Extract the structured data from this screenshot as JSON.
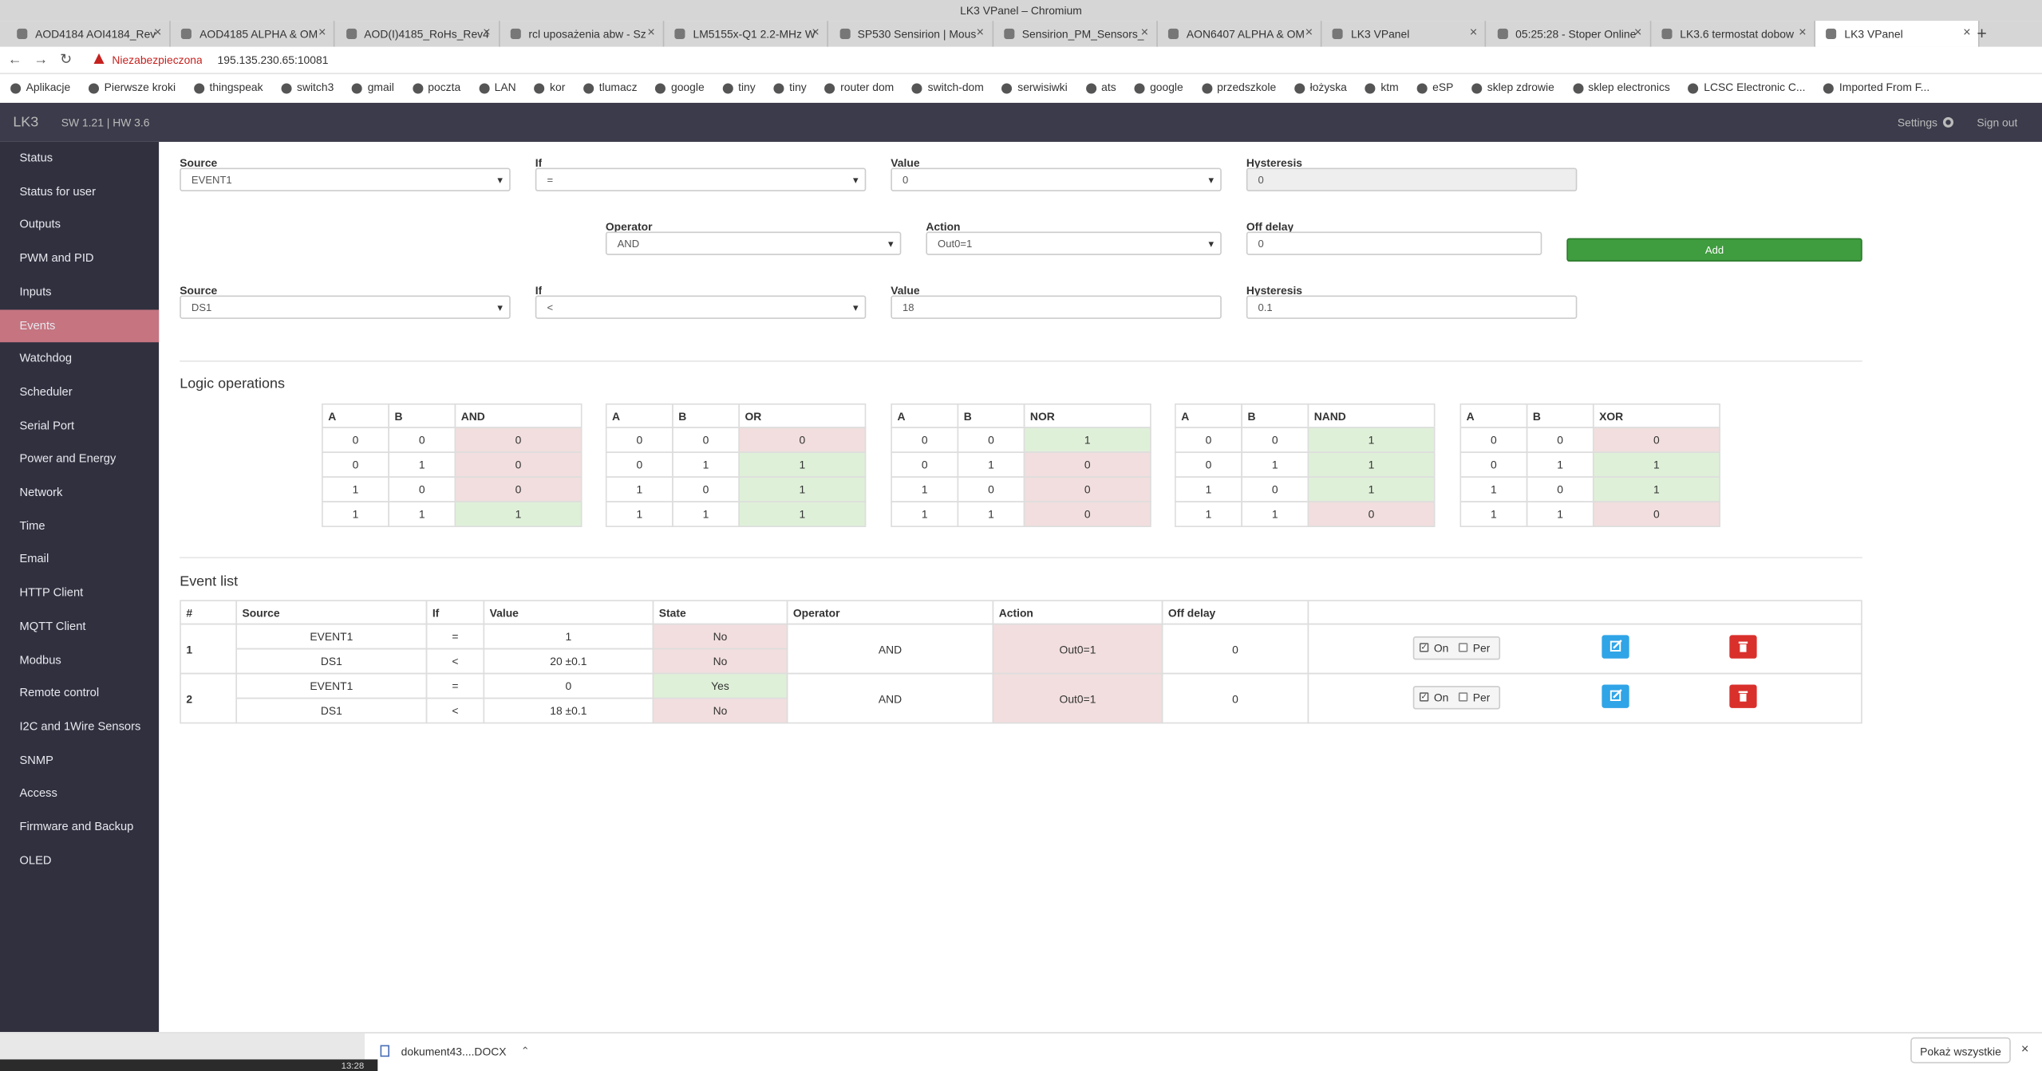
{
  "browser": {
    "window_title": "LK3 VPanel – Chromium",
    "tabs": [
      "AOD4184 AOI4184_Rev",
      "AOD4185 ALPHA & OM",
      "AOD(I)4185_RoHs_Rev4",
      "rcl uposażenia abw - Sz",
      "LM5155x-Q1 2.2-MHz W",
      "SP530 Sensirion | Mous",
      "Sensirion_PM_Sensors_",
      "AON6407 ALPHA & OM",
      "LK3 VPanel",
      "05:25:28 - Stoper Online",
      "LK3.6 termostat dobow",
      "LK3 VPanel"
    ],
    "security": "Niezabezpieczona",
    "url": "195.135.230.65:10081",
    "bookmarks": [
      "Aplikacje",
      "Pierwsze kroki",
      "thingspeak",
      "switch3",
      "gmail",
      "poczta",
      "LAN",
      "kor",
      "tlumacz",
      "google",
      "tiny",
      "tiny",
      "router dom",
      "switch-dom",
      "serwisiwki",
      "ats",
      "google",
      "przedszkole",
      "łożyska",
      "ktm",
      "eSP",
      "sklep zdrowie",
      "sklep electronics",
      "LCSC Electronic C...",
      "Imported From F..."
    ]
  },
  "app": {
    "brand": "LK3",
    "version": "SW 1.21 | HW 3.6",
    "settings": "Settings",
    "signout": "Sign out",
    "sidebar": [
      "Status",
      "Status for user",
      "Outputs",
      "PWM and PID",
      "Inputs",
      "Events",
      "Watchdog",
      "Scheduler",
      "Serial Port",
      "Power and Energy",
      "Network",
      "Time",
      "Email",
      "HTTP Client",
      "MQTT Client",
      "Modbus",
      "Remote control",
      "I2C and 1Wire Sensors",
      "SNMP",
      "Access",
      "Firmware and Backup",
      "OLED"
    ]
  },
  "form": {
    "row1": [
      {
        "label": "Source",
        "value": "EVENT1"
      },
      {
        "label": "If",
        "value": "="
      },
      {
        "label": "Value",
        "value": "0"
      },
      {
        "label": "Hysteresis",
        "value": "0"
      }
    ],
    "row2": [
      {
        "label": "Operator",
        "value": "AND"
      },
      {
        "label": "Action",
        "value": "Out0=1"
      },
      {
        "label": "Off delay",
        "value": "0"
      }
    ],
    "add": "Add",
    "row3": [
      {
        "label": "Source",
        "value": "DS1"
      },
      {
        "label": "If",
        "value": "<"
      },
      {
        "label": "Value",
        "value": "18"
      },
      {
        "label": "Hysteresis",
        "value": "0.1"
      }
    ]
  },
  "logic": {
    "title": "Logic operations",
    "tables": [
      {
        "headers": [
          "A",
          "B",
          "AND"
        ],
        "rows": [
          [
            0,
            0,
            0
          ],
          [
            0,
            1,
            0
          ],
          [
            1,
            0,
            0
          ],
          [
            1,
            1,
            1
          ]
        ]
      },
      {
        "headers": [
          "A",
          "B",
          "OR"
        ],
        "rows": [
          [
            0,
            0,
            0
          ],
          [
            0,
            1,
            1
          ],
          [
            1,
            0,
            1
          ],
          [
            1,
            1,
            1
          ]
        ]
      },
      {
        "headers": [
          "A",
          "B",
          "NOR"
        ],
        "rows": [
          [
            0,
            0,
            1
          ],
          [
            0,
            1,
            0
          ],
          [
            1,
            0,
            0
          ],
          [
            1,
            1,
            0
          ]
        ]
      },
      {
        "headers": [
          "A",
          "B",
          "NAND"
        ],
        "rows": [
          [
            0,
            0,
            1
          ],
          [
            0,
            1,
            1
          ],
          [
            1,
            0,
            1
          ],
          [
            1,
            1,
            0
          ]
        ]
      },
      {
        "headers": [
          "A",
          "B",
          "XOR"
        ],
        "rows": [
          [
            0,
            0,
            0
          ],
          [
            0,
            1,
            1
          ],
          [
            1,
            0,
            1
          ],
          [
            1,
            1,
            0
          ]
        ]
      }
    ]
  },
  "events": {
    "title": "Event list",
    "headers": [
      "#",
      "Source",
      "If",
      "Value",
      "State",
      "Operator",
      "Action",
      "Off delay"
    ],
    "rows": [
      {
        "id": "1",
        "conditions": [
          {
            "source": "EVENT1",
            "if": "=",
            "value": "1",
            "state": "No"
          },
          {
            "source": "DS1",
            "if": "<",
            "value": "20 ±0.1",
            "state": "No"
          }
        ],
        "operator": "AND",
        "action": "Out0=1",
        "off_delay": "0",
        "on": "On",
        "per": "Per"
      },
      {
        "id": "2",
        "conditions": [
          {
            "source": "EVENT1",
            "if": "=",
            "value": "0",
            "state": "Yes"
          },
          {
            "source": "DS1",
            "if": "<",
            "value": "18 ±0.1",
            "state": "No"
          }
        ],
        "operator": "AND",
        "action": "Out0=1",
        "off_delay": "0",
        "on": "On",
        "per": "Per"
      }
    ]
  },
  "downloads": {
    "file": "dokument43....DOCX",
    "show_all": "Pokaż wszystkie"
  },
  "taskbar": {
    "time": "13:28"
  }
}
